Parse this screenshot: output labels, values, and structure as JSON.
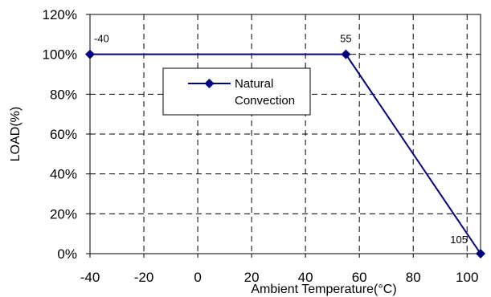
{
  "chart_data": {
    "type": "line",
    "xlabel": "Ambient Temperature(°C)",
    "ylabel": "LOAD(%)",
    "xlim": [
      -40,
      105
    ],
    "ylim": [
      0,
      120
    ],
    "x_ticks": [
      -40,
      -20,
      0,
      20,
      40,
      60,
      80,
      100
    ],
    "y_ticks": [
      0,
      20,
      40,
      60,
      80,
      100,
      120
    ],
    "y_tick_labels": [
      "0%",
      "20%",
      "40%",
      "60%",
      "80%",
      "100%",
      "120%"
    ],
    "x_tick_labels": [
      "-40",
      "-20",
      "0",
      "20",
      "40",
      "60",
      "80",
      "100"
    ],
    "grid": true,
    "legend_position": "upper-center",
    "series": [
      {
        "name": "Natural Convection",
        "color": "#000080",
        "marker": "diamond",
        "points": [
          {
            "x": -40,
            "y": 100,
            "label": "-40"
          },
          {
            "x": 55,
            "y": 100,
            "label": "55"
          },
          {
            "x": 105,
            "y": 0,
            "label": "105"
          }
        ]
      }
    ],
    "legend": {
      "lines": [
        "Natural",
        "Convection"
      ]
    }
  }
}
